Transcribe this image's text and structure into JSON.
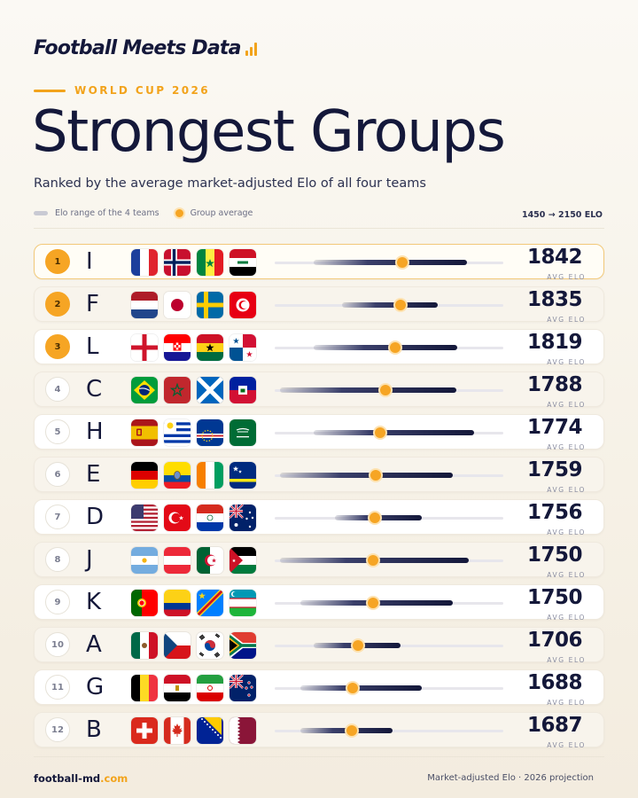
{
  "brand": {
    "name": "Football Meets Data"
  },
  "kicker": "WORLD CUP 2026",
  "title": "Strongest Groups",
  "subtitle": "Ranked by the average market-adjusted Elo of all four teams",
  "legend": {
    "range_label": "Elo range of the 4 teams",
    "avg_label": "Group average",
    "scale_label": "1450 → 2150 ELO"
  },
  "elo_unit_label": "AVG ELO",
  "footer": {
    "site_name": "football-md",
    "site_tld": ".com",
    "note": "Market-adjusted Elo · 2026 projection"
  },
  "colors": {
    "accent": "#f6a524",
    "navy": "#14183a",
    "track": "#e7e6ec"
  },
  "chart_data": {
    "type": "bar",
    "title": "Strongest Groups",
    "xlim": [
      1450,
      2150
    ],
    "xlabel": "ELO",
    "series_names": [
      "Elo range of the 4 teams",
      "Group average"
    ],
    "rows": [
      {
        "rank": 1,
        "group": "I",
        "flags": [
          "france-flag",
          "norway-flag",
          "senegal-flag",
          "iraq-flag"
        ],
        "min": 1570,
        "max": 2040,
        "avg": 1842
      },
      {
        "rank": 2,
        "group": "F",
        "flags": [
          "netherlands-flag",
          "japan-flag",
          "sweden-flag",
          "tunisia-flag"
        ],
        "min": 1655,
        "max": 1950,
        "avg": 1835
      },
      {
        "rank": 3,
        "group": "L",
        "flags": [
          "england-flag",
          "croatia-flag",
          "ghana-flag",
          "panama-flag"
        ],
        "min": 1570,
        "max": 2010,
        "avg": 1819
      },
      {
        "rank": 4,
        "group": "C",
        "flags": [
          "brazil-flag",
          "morocco-flag",
          "scotland-flag",
          "haiti-flag"
        ],
        "min": 1465,
        "max": 2005,
        "avg": 1788
      },
      {
        "rank": 5,
        "group": "H",
        "flags": [
          "spain-flag",
          "uruguay-flag",
          "cape-verde-flag",
          "saudi-arabia-flag"
        ],
        "min": 1570,
        "max": 2060,
        "avg": 1774
      },
      {
        "rank": 6,
        "group": "E",
        "flags": [
          "germany-flag",
          "ecuador-flag",
          "ivory-coast-flag",
          "curacao-flag"
        ],
        "min": 1465,
        "max": 1995,
        "avg": 1759
      },
      {
        "rank": 7,
        "group": "D",
        "flags": [
          "usa-flag",
          "turkey-flag",
          "paraguay-flag",
          "australia-flag"
        ],
        "min": 1635,
        "max": 1900,
        "avg": 1756
      },
      {
        "rank": 8,
        "group": "J",
        "flags": [
          "argentina-flag",
          "austria-flag",
          "algeria-flag",
          "jordan-flag"
        ],
        "min": 1465,
        "max": 2045,
        "avg": 1750
      },
      {
        "rank": 9,
        "group": "K",
        "flags": [
          "portugal-flag",
          "colombia-flag",
          "dr-congo-flag",
          "uzbekistan-flag"
        ],
        "min": 1530,
        "max": 1995,
        "avg": 1750
      },
      {
        "rank": 10,
        "group": "A",
        "flags": [
          "mexico-flag",
          "czech-republic-flag",
          "south-korea-flag",
          "south-africa-flag"
        ],
        "min": 1570,
        "max": 1835,
        "avg": 1706
      },
      {
        "rank": 11,
        "group": "G",
        "flags": [
          "belgium-flag",
          "egypt-flag",
          "iran-flag",
          "new-zealand-flag"
        ],
        "min": 1530,
        "max": 1900,
        "avg": 1688
      },
      {
        "rank": 12,
        "group": "B",
        "flags": [
          "switzerland-flag",
          "canada-flag",
          "bosnia-herzegovina-flag",
          "qatar-flag"
        ],
        "min": 1530,
        "max": 1810,
        "avg": 1687
      }
    ]
  }
}
